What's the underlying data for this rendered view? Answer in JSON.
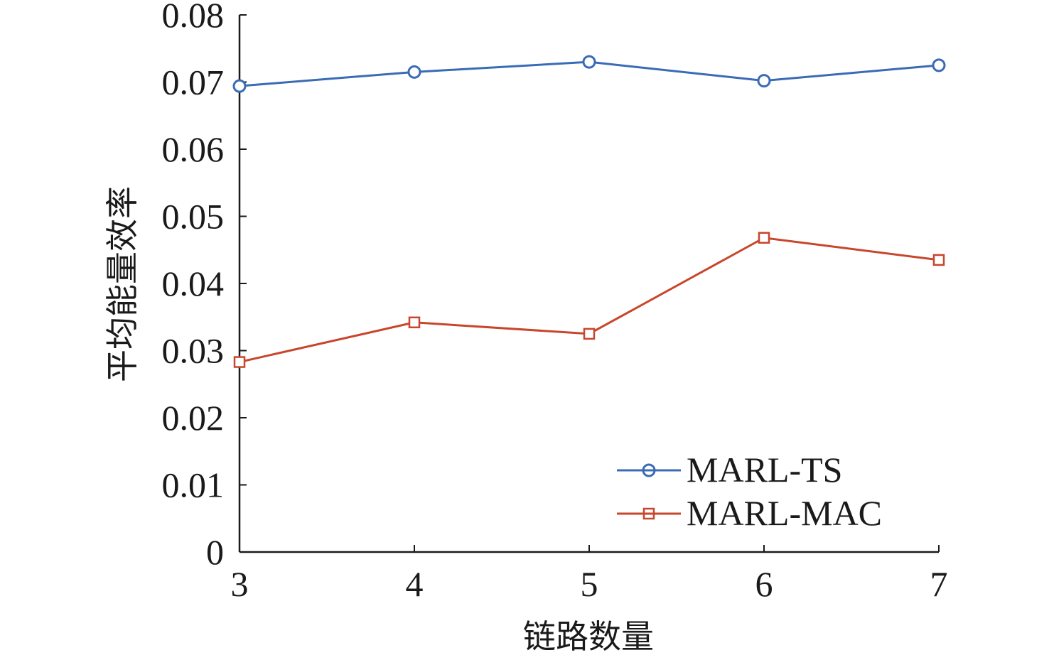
{
  "chart_data": {
    "type": "line",
    "title": "",
    "xlabel": "链路数量",
    "ylabel": "平均能量效率",
    "x": [
      3,
      4,
      5,
      6,
      7
    ],
    "x_ticks": [
      "3",
      "4",
      "5",
      "6",
      "7"
    ],
    "xlim": [
      3,
      7
    ],
    "ylim": [
      0,
      0.08
    ],
    "y_ticks": [
      "0",
      "0.01",
      "0.02",
      "0.03",
      "0.04",
      "0.05",
      "0.06",
      "0.07",
      "0.08"
    ],
    "grid": false,
    "legend_position": "bottom-right",
    "series": [
      {
        "name": "MARL-TS",
        "color": "#3a6bb5",
        "marker": "circle",
        "values": [
          0.0694,
          0.0715,
          0.073,
          0.0702,
          0.0725
        ]
      },
      {
        "name": "MARL-MAC",
        "color": "#c8462c",
        "marker": "square",
        "values": [
          0.0283,
          0.0342,
          0.0325,
          0.0468,
          0.0435
        ]
      }
    ]
  }
}
